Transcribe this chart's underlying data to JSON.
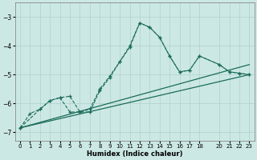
{
  "bg_color": "#cce8e4",
  "grid_color": "#b0d0cc",
  "line_color": "#1a6b5a",
  "xlabel": "Humidex (Indice chaleur)",
  "xlim": [
    -0.5,
    23.5
  ],
  "ylim": [
    -7.3,
    -2.5
  ],
  "yticks": [
    -7,
    -6,
    -5,
    -4,
    -3
  ],
  "xticks": [
    0,
    1,
    2,
    3,
    4,
    5,
    6,
    7,
    8,
    9,
    10,
    11,
    12,
    13,
    14,
    15,
    16,
    17,
    18,
    20,
    21,
    22,
    23
  ],
  "line1_x": [
    0,
    1,
    2,
    3,
    4,
    5,
    6,
    7,
    8,
    9,
    10,
    11,
    12,
    13,
    14,
    15,
    16,
    17,
    18,
    20,
    21,
    22,
    23
  ],
  "line1_y": [
    -6.85,
    -6.35,
    -6.2,
    -5.9,
    -5.8,
    -6.3,
    -6.3,
    -6.3,
    -5.55,
    -5.1,
    -4.55,
    -4.0,
    -3.2,
    -3.35,
    -3.7,
    -4.35,
    -4.9,
    -4.85,
    -4.35,
    -4.65,
    -4.9,
    -4.95,
    -5.0
  ],
  "line2_x": [
    0,
    2,
    3,
    4,
    5,
    6,
    7,
    8,
    9,
    10,
    11,
    12,
    13,
    14,
    15,
    16,
    17,
    18,
    20,
    21,
    22,
    23
  ],
  "line2_y": [
    -6.85,
    -6.2,
    -5.9,
    -5.8,
    -5.75,
    -6.3,
    -6.2,
    -5.5,
    -5.05,
    -4.55,
    -4.05,
    -3.2,
    -3.35,
    -3.7,
    -4.35,
    -4.9,
    -4.85,
    -4.35,
    -4.65,
    -4.9,
    -4.95,
    -5.0
  ],
  "line3_x": [
    0,
    23
  ],
  "line3_y": [
    -6.85,
    -5.0
  ],
  "line4_x": [
    0,
    23
  ],
  "line4_y": [
    -6.85,
    -4.65
  ]
}
